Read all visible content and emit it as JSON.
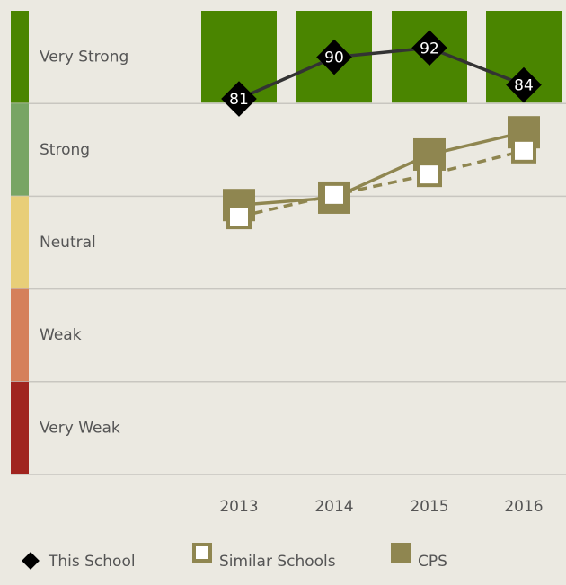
{
  "chart_data": {
    "type": "line",
    "categories": [
      "2013",
      "2014",
      "2015",
      "2016"
    ],
    "ylim": [
      0,
      100
    ],
    "bands": [
      {
        "label": "Very Strong",
        "color": "#4a8500",
        "range": [
          80,
          100
        ]
      },
      {
        "label": "Strong",
        "color": "#78a564",
        "range": [
          60,
          80
        ]
      },
      {
        "label": "Neutral",
        "color": "#e8ce78",
        "range": [
          40,
          60
        ]
      },
      {
        "label": "Weak",
        "color": "#d5805a",
        "range": [
          20,
          40
        ]
      },
      {
        "label": "Very Weak",
        "color": "#a0241f",
        "range": [
          0,
          20
        ]
      }
    ],
    "series": [
      {
        "name": "CPS",
        "color": "#8f8650",
        "marker": "filled-square",
        "dashed": false,
        "values": [
          58.1,
          59.7,
          69,
          73.8
        ]
      },
      {
        "name": "Similar Schools",
        "color": "#8f8650",
        "marker": "open-square",
        "dashed": true,
        "values": [
          55.6,
          60.3,
          64.7,
          69.8
        ]
      },
      {
        "name": "This School",
        "color": "#000000",
        "line_color": "#333333",
        "marker": "diamond",
        "dashed": false,
        "data_labels": true,
        "values": [
          81,
          90,
          92,
          84
        ]
      }
    ],
    "legend_order": [
      2,
      1,
      0
    ]
  }
}
